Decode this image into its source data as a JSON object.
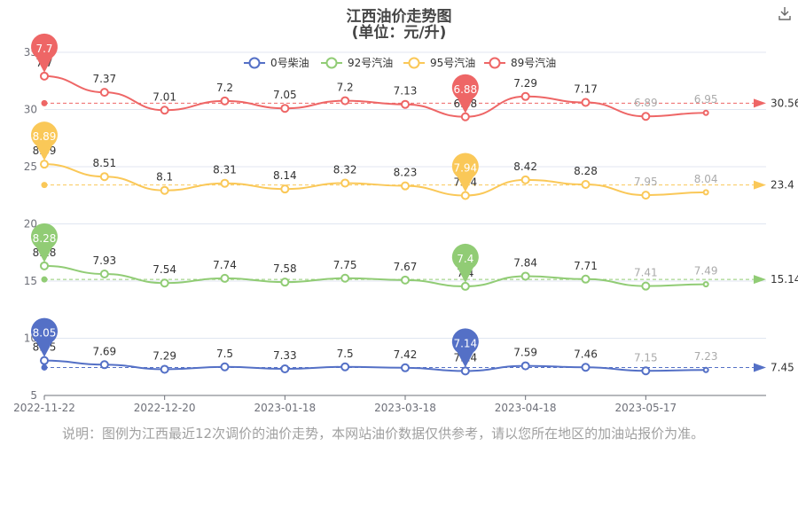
{
  "title": "江西油价走势图",
  "subtitle": "(单位：元/升)",
  "note": "说明：图例为江西最近12次调价的油价走势，本网站油价数据仅供参考，请以您所在地区的加油站报价为准。",
  "icons": {
    "download": "download-icon"
  },
  "chart_data": {
    "type": "line",
    "x_ticks": [
      "2022-11-22",
      "2022-12-20",
      "2023-01-18",
      "2023-03-18",
      "2023-04-18",
      "2023-05-17"
    ],
    "y_ticks": [
      "5",
      "10",
      "15",
      "20",
      "25",
      "30",
      "35"
    ],
    "ylim": [
      5,
      35
    ],
    "series": [
      {
        "name": "0号柴油",
        "color": "#5470c6",
        "values": [
          8.05,
          7.69,
          7.29,
          7.5,
          7.33,
          7.5,
          7.42,
          7.14,
          7.59,
          7.46,
          7.15,
          7.23
        ],
        "max_label": "8.05",
        "min_label": "7.14",
        "end_label": "7.45",
        "avg_label": "7.45"
      },
      {
        "name": "92号汽油",
        "color": "#91cc75",
        "values": [
          8.28,
          7.93,
          7.54,
          7.74,
          7.58,
          7.75,
          7.67,
          7.4,
          7.84,
          7.71,
          7.41,
          7.49
        ],
        "max_label": "8.28",
        "min_label": "7.4",
        "end_label": "15.14",
        "avg_label": "15.14"
      },
      {
        "name": "95号汽油",
        "color": "#fac858",
        "values": [
          8.89,
          8.51,
          8.1,
          8.31,
          8.14,
          8.32,
          8.23,
          7.94,
          8.42,
          8.28,
          7.95,
          8.04
        ],
        "max_label": "8.89",
        "min_label": "7.94",
        "end_label": "23.4",
        "avg_label": "23.4"
      },
      {
        "name": "89号汽油",
        "color": "#ee6666",
        "values": [
          7.7,
          7.37,
          7.01,
          7.2,
          7.05,
          7.2,
          7.13,
          6.88,
          7.29,
          7.17,
          6.89,
          6.95
        ],
        "max_label": "7.7",
        "min_label": "6.88",
        "end_label": "30.56",
        "avg_label": "30.56"
      }
    ]
  }
}
